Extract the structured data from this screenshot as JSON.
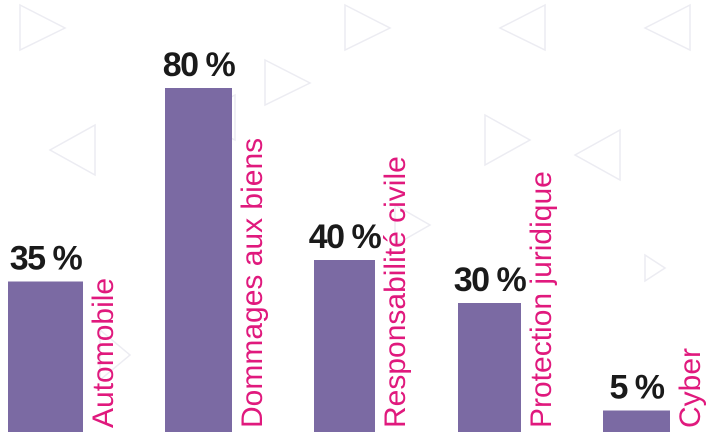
{
  "chart_data": {
    "type": "bar",
    "categories": [
      "Automobile",
      "Dommages aux biens",
      "Responsabilité civile",
      "Protection juridique",
      "Cyber"
    ],
    "values": [
      35,
      80,
      40,
      30,
      5
    ],
    "value_labels": [
      "35 %",
      "80 %",
      "40 %",
      "30 %",
      "5 %"
    ],
    "title": "",
    "xlabel": "",
    "ylabel": "",
    "ylim": [
      0,
      100
    ],
    "grid": false,
    "legend": "none",
    "bar_color": "#7b6aa3",
    "label_color": "#e0197d",
    "value_color": "#1a1a1a"
  }
}
